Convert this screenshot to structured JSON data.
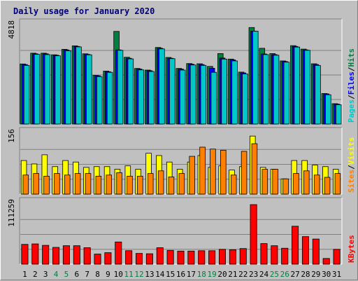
{
  "chart_data": {
    "type": "bar",
    "title": "Daily usage for January 2020",
    "x": [
      "1",
      "2",
      "3",
      "4",
      "5",
      "6",
      "7",
      "8",
      "9",
      "10",
      "11",
      "12",
      "13",
      "14",
      "15",
      "16",
      "17",
      "18",
      "19",
      "20",
      "21",
      "22",
      "23",
      "24",
      "25",
      "26",
      "27",
      "28",
      "29",
      "30",
      "31"
    ],
    "weekend_days": [
      "4",
      "5",
      "11",
      "12",
      "18",
      "19",
      "25",
      "26"
    ],
    "panels": [
      {
        "name": "hits-files-pages",
        "max_label": "4818",
        "ymax": 4818,
        "legend": [
          {
            "text": "Pages",
            "color": "#00c8c8"
          },
          {
            "text": "Files",
            "color": "#0000ff"
          },
          {
            "text": "Hits",
            "color": "#008040"
          }
        ],
        "series": [
          {
            "name": "Hits",
            "color": "#008040",
            "values": [
              2950,
              3480,
              3480,
              3400,
              3670,
              3840,
              3450,
              2390,
              2600,
              4550,
              3280,
              2730,
              2650,
              3760,
              3270,
              2730,
              2970,
              2960,
              2830,
              3460,
              3190,
              2550,
              4740,
              3720,
              3460,
              3100,
              3850,
              3680,
              2960,
              1500,
              1000
            ]
          },
          {
            "name": "Files",
            "color": "#0000ff",
            "values": [
              2920,
              3450,
              3450,
              3380,
              3640,
              3810,
              3420,
              2370,
              2570,
              3640,
              3230,
              2700,
              2620,
              3720,
              3230,
              2700,
              2940,
              2920,
              2740,
              3240,
              3150,
              2510,
              4560,
              3440,
              3410,
              3070,
              3810,
              3640,
              2920,
              1480,
              980
            ]
          },
          {
            "name": "Pages",
            "color": "#00c8c8",
            "values": [
              2880,
              3420,
              3410,
              3350,
              3600,
              3790,
              3400,
              2330,
              2540,
              3620,
              3200,
              2660,
              2580,
              3690,
              3210,
              2650,
              2900,
              2880,
              2540,
              3190,
              3100,
              2460,
              4560,
              3410,
              3380,
              3040,
              3780,
              3620,
              2880,
              1440,
              950
            ]
          }
        ]
      },
      {
        "name": "visits-sites",
        "max_label": "156",
        "ymax": 156,
        "legend": [
          {
            "text": "Sites",
            "color": "#ff8000"
          },
          {
            "text": "Visits",
            "color": "#ffff00"
          }
        ],
        "series": [
          {
            "name": "Visits",
            "color": "#ffff00",
            "values": [
              88,
              79,
              103,
              72,
              88,
              84,
              70,
              72,
              72,
              65,
              74,
              65,
              107,
              101,
              84,
              65,
              84,
              101,
              70,
              74,
              63,
              72,
              152,
              70,
              65,
              40,
              88,
              88,
              76,
              72,
              65
            ]
          },
          {
            "name": "Sites",
            "color": "#ff8000",
            "values": [
              50,
              54,
              47,
              54,
              50,
              54,
              54,
              47,
              50,
              56,
              47,
              47,
              54,
              61,
              45,
              54,
              99,
              123,
              118,
              115,
              50,
              112,
              132,
              65,
              65,
              40,
              54,
              61,
              50,
              44,
              54
            ]
          }
        ]
      },
      {
        "name": "kbytes",
        "max_label": "111259",
        "ymax": 111259,
        "legend": [
          {
            "text": "KBytes",
            "color": "#ff0000"
          }
        ],
        "series": [
          {
            "name": "KBytes",
            "color": "#ff0000",
            "values": [
              37000,
              37900,
              35200,
              31400,
              34500,
              34500,
              30800,
              18900,
              21500,
              41500,
              25200,
              20100,
              19500,
              30800,
              25800,
              24500,
              24500,
              25100,
              25100,
              27700,
              27000,
              29200,
              111259,
              38500,
              34500,
              29800,
              70900,
              51500,
              47000,
              10700,
              27700
            ]
          }
        ]
      }
    ]
  }
}
